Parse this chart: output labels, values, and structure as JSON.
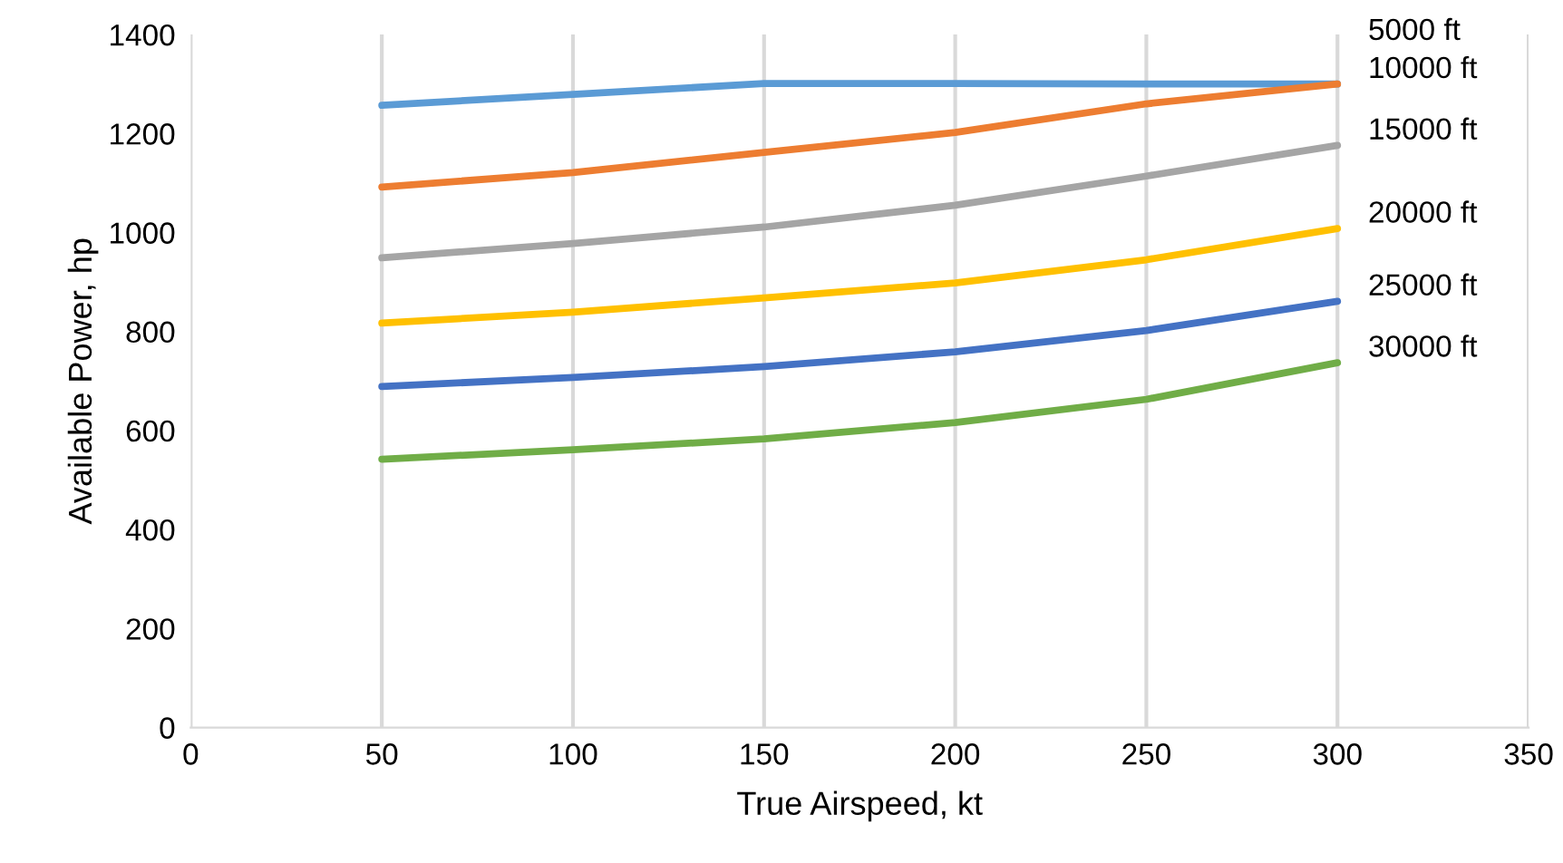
{
  "chart_data": {
    "type": "line",
    "xlabel": "True Airspeed, kt",
    "ylabel": "Available Power, hp",
    "x": [
      50,
      100,
      150,
      200,
      250,
      300
    ],
    "series": [
      {
        "name": "5000 ft",
        "color": "#5b9bd5",
        "values": [
          1257,
          1279,
          1301,
          1301,
          1300,
          1300
        ]
      },
      {
        "name": "10000 ft",
        "color": "#ed7d31",
        "values": [
          1092,
          1121,
          1162,
          1202,
          1260,
          1300
        ]
      },
      {
        "name": "15000 ft",
        "color": "#a5a5a5",
        "values": [
          949,
          978,
          1011,
          1055,
          1114,
          1176
        ]
      },
      {
        "name": "20000 ft",
        "color": "#ffc000",
        "values": [
          817,
          839,
          868,
          898,
          945,
          1008
        ]
      },
      {
        "name": "25000 ft",
        "color": "#4472c4",
        "values": [
          689,
          707,
          729,
          759,
          802,
          861
        ]
      },
      {
        "name": "30000 ft",
        "color": "#70ad47",
        "values": [
          542,
          561,
          583,
          616,
          663,
          737
        ]
      }
    ],
    "xlim": [
      0,
      350
    ],
    "xticks": [
      0,
      50,
      100,
      150,
      200,
      250,
      300,
      350
    ],
    "ylim": [
      0,
      1400
    ],
    "yticks": [
      0,
      200,
      400,
      600,
      800,
      1000,
      1200,
      1400
    ],
    "grid": "x",
    "legend": false,
    "marker": "none",
    "line_style": "solid"
  }
}
